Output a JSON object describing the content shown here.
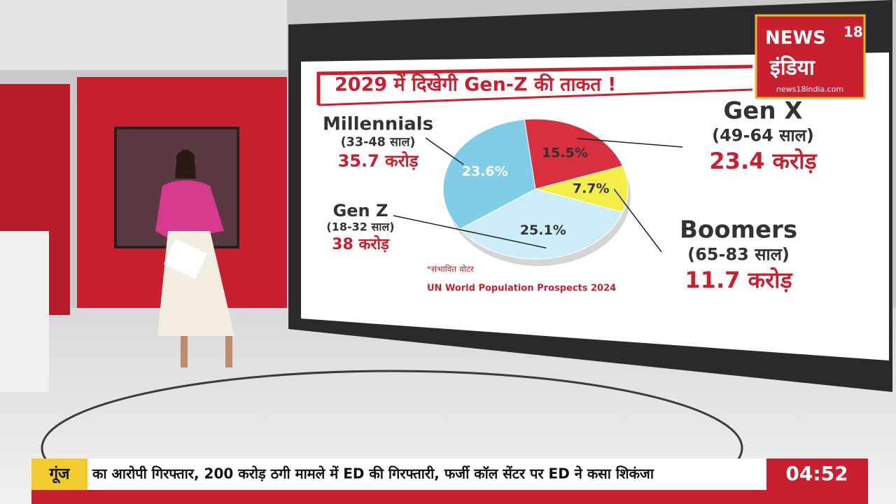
{
  "chart_data": {
    "type": "pie",
    "title": "2029 में दिखेगी Gen-Z की ताकत !",
    "categories": [
      "Millennials",
      "Gen X",
      "Boomers",
      "Gen Z"
    ],
    "values": [
      23.6,
      15.5,
      7.7,
      25.1
    ],
    "value_labels": [
      "23.6%",
      "15.5%",
      "7.7%",
      "25.1%"
    ],
    "colors": [
      "#7fcde6",
      "#d8303e",
      "#f4ee4a",
      "#cdeef8"
    ],
    "age_ranges": [
      "(33-48 साल)",
      "(49-64 साल)",
      "(65-83 साल)",
      "(18-32 साल)"
    ],
    "voters": [
      "35.7 करोड़",
      "23.4 करोड़",
      "11.7 करोड़",
      "38 करोड़"
    ],
    "footnote": "*संभावित वोटर",
    "source": "UN World Population Prospects 2024"
  },
  "logo": {
    "brand": "NEWS",
    "number": "18",
    "name": "इंडिया",
    "url": "news18india.com"
  },
  "ticker": {
    "tag": "गूंज",
    "text": "का आरोपी गिरफ्तार, 200 करोड़ ठगी मामले में ED की गिरफ्तारी, फर्जी कॉल सेंटर पर ED ने कसा शिकंजा",
    "clock": "04:52"
  }
}
